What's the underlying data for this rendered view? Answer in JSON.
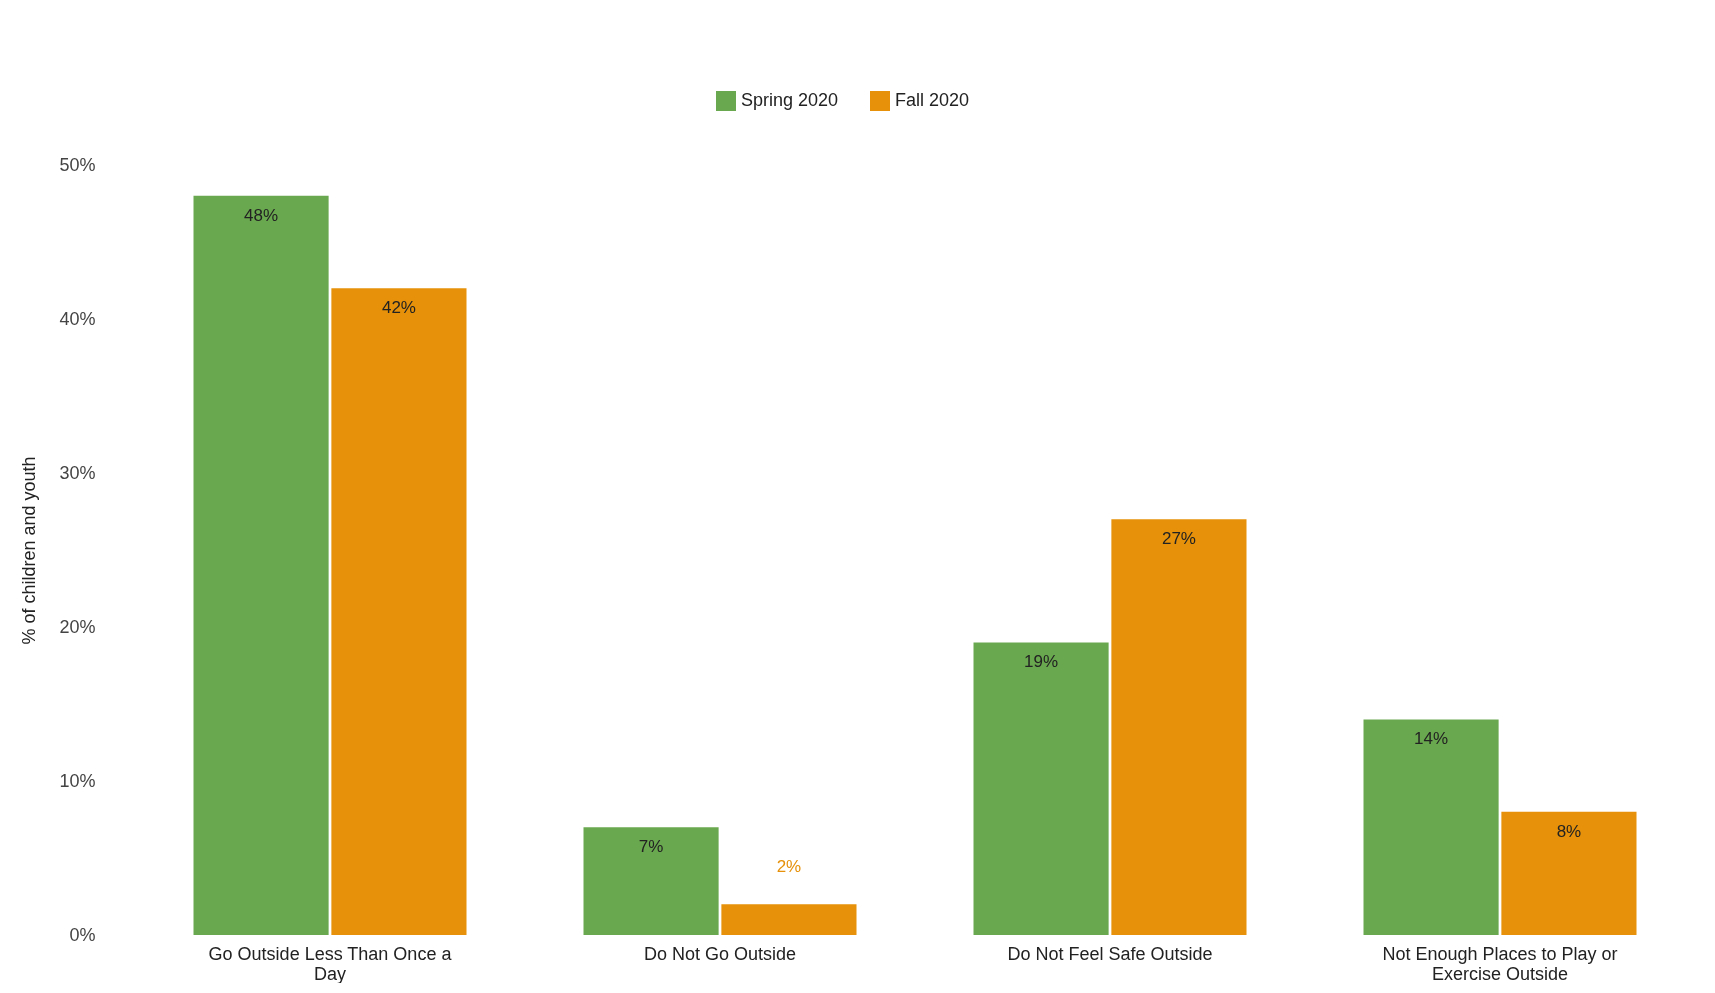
{
  "chart_data": {
    "type": "bar",
    "ylabel": "% of children and youth",
    "categories": [
      "Go Outside Less Than Once a Day",
      "Do Not Go Outside",
      "Do Not Feel Safe Outside",
      "Not Enough Places to Play or Exercise Outside"
    ],
    "series": [
      {
        "name": "Spring 2020",
        "color": "#6aa84f",
        "values": [
          48,
          7,
          19,
          14
        ],
        "value_labels": [
          "48%",
          "7%",
          "19%",
          "14%"
        ]
      },
      {
        "name": "Fall 2020",
        "color": "#e69109",
        "values": [
          42,
          2,
          27,
          8
        ],
        "value_labels": [
          "42%",
          "2%",
          "27%",
          "8%"
        ]
      }
    ],
    "ylim": [
      0,
      50
    ],
    "yticks": [
      {
        "value": 0,
        "label": "0%"
      },
      {
        "value": 10,
        "label": "10%"
      },
      {
        "value": 20,
        "label": "20%"
      },
      {
        "value": 30,
        "label": "30%"
      },
      {
        "value": 40,
        "label": "40%"
      },
      {
        "value": 50,
        "label": "50%"
      }
    ],
    "grid": false,
    "legend": "top"
  }
}
